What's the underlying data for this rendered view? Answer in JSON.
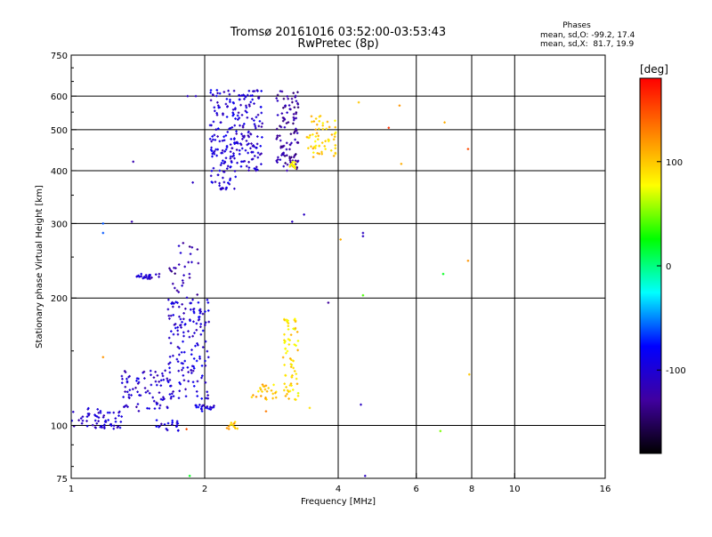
{
  "chart_data": {
    "type": "scatter",
    "title": "Tromsø 20161016 03:52:00-03:53:43",
    "subtitle": "RwPretec (8p)",
    "xlabel": "Frequency [MHz]",
    "ylabel": "Stationary phase Virtual Height [km]",
    "x_scale": "log2",
    "y_scale": "log",
    "xlim": [
      1,
      16
    ],
    "ylim": [
      75,
      750
    ],
    "x_ticks": [
      1,
      2,
      4,
      6,
      8,
      10,
      16
    ],
    "x_tick_labels": [
      "1",
      "2",
      "4",
      "6",
      "8",
      "10",
      "16"
    ],
    "y_ticks": [
      75,
      100,
      200,
      300,
      400,
      500,
      600,
      750
    ],
    "y_tick_labels": [
      "75",
      "100",
      "200",
      "300",
      "400",
      "500",
      "600",
      "750"
    ],
    "x_gridlines": [
      2,
      4,
      6,
      8,
      10
    ],
    "y_gridlines": [
      100,
      200,
      300,
      400,
      500,
      600
    ],
    "grid": true,
    "phase_info": {
      "heading": "Phases",
      "line1": "mean, sd,O: -99.2, 17.4",
      "line2": "mean, sd,X:  81.7, 19.9"
    },
    "colorbar": {
      "label": "[deg]",
      "range": [
        -180,
        180
      ],
      "ticks": [
        100,
        0,
        -100
      ],
      "tick_labels": [
        "100",
        "0",
        "-100"
      ],
      "colors": [
        "#ff0000",
        "#ff8000",
        "#ffff00",
        "#00ff00",
        "#00ffff",
        "#0000ff",
        "#4000a0",
        "#000000"
      ]
    },
    "clusters": [
      {
        "fmin": 1.0,
        "fmax": 1.3,
        "hmin": 98,
        "hmax": 110,
        "phase_mean": -105,
        "n": 60
      },
      {
        "fmin": 1.3,
        "fmax": 1.7,
        "hmin": 108,
        "hmax": 135,
        "phase_mean": -105,
        "n": 80
      },
      {
        "fmin": 1.55,
        "fmax": 1.75,
        "hmin": 97,
        "hmax": 103,
        "phase_mean": -100,
        "n": 20
      },
      {
        "fmin": 1.65,
        "fmax": 2.05,
        "hmin": 115,
        "hmax": 200,
        "phase_mean": -100,
        "n": 150
      },
      {
        "fmin": 1.9,
        "fmax": 2.1,
        "hmin": 108,
        "hmax": 112,
        "phase_mean": -100,
        "n": 20
      },
      {
        "fmin": 1.4,
        "fmax": 1.6,
        "hmin": 222,
        "hmax": 228,
        "phase_mean": -105,
        "n": 25
      },
      {
        "fmin": 1.65,
        "fmax": 1.95,
        "hmin": 200,
        "hmax": 270,
        "phase_mean": -120,
        "n": 30
      },
      {
        "fmin": 2.05,
        "fmax": 2.35,
        "hmin": 360,
        "hmax": 620,
        "phase_mean": -100,
        "n": 140
      },
      {
        "fmin": 2.35,
        "fmax": 2.7,
        "hmin": 400,
        "hmax": 620,
        "phase_mean": -105,
        "n": 120
      },
      {
        "fmin": 2.9,
        "fmax": 3.25,
        "hmin": 400,
        "hmax": 620,
        "phase_mean": -125,
        "n": 110
      },
      {
        "fmin": 3.4,
        "fmax": 3.95,
        "hmin": 430,
        "hmax": 540,
        "phase_mean": 95,
        "n": 60
      },
      {
        "fmin": 3.0,
        "fmax": 3.25,
        "hmin": 115,
        "hmax": 180,
        "phase_mean": 90,
        "n": 70
      },
      {
        "fmin": 2.55,
        "fmax": 2.95,
        "hmin": 115,
        "hmax": 125,
        "phase_mean": 100,
        "n": 25
      },
      {
        "fmin": 2.2,
        "fmax": 2.4,
        "hmin": 98,
        "hmax": 102,
        "phase_mean": 105,
        "n": 12
      },
      {
        "fmin": 3.1,
        "fmax": 3.2,
        "hmin": 404,
        "hmax": 420,
        "phase_mean": 80,
        "n": 15
      }
    ],
    "points": [
      {
        "f": 1.38,
        "h": 420,
        "phase": -120
      },
      {
        "f": 1.37,
        "h": 303,
        "phase": -120
      },
      {
        "f": 1.18,
        "h": 300,
        "phase": -60
      },
      {
        "f": 1.18,
        "h": 285,
        "phase": -60
      },
      {
        "f": 1.88,
        "h": 375,
        "phase": -110
      },
      {
        "f": 1.83,
        "h": 600,
        "phase": -110
      },
      {
        "f": 1.91,
        "h": 600,
        "phase": -110
      },
      {
        "f": 3.15,
        "h": 303,
        "phase": -110
      },
      {
        "f": 3.35,
        "h": 315,
        "phase": -110
      },
      {
        "f": 4.55,
        "h": 285,
        "phase": -110
      },
      {
        "f": 4.55,
        "h": 280,
        "phase": -110
      },
      {
        "f": 4.05,
        "h": 275,
        "phase": 110
      },
      {
        "f": 3.8,
        "h": 195,
        "phase": -130
      },
      {
        "f": 4.55,
        "h": 203,
        "phase": 40
      },
      {
        "f": 4.5,
        "h": 112,
        "phase": -110
      },
      {
        "f": 4.6,
        "h": 76,
        "phase": -110
      },
      {
        "f": 5.5,
        "h": 570,
        "phase": 120
      },
      {
        "f": 5.2,
        "h": 505,
        "phase": 160
      },
      {
        "f": 5.55,
        "h": 415,
        "phase": 110
      },
      {
        "f": 6.95,
        "h": 520,
        "phase": 110
      },
      {
        "f": 7.85,
        "h": 450,
        "phase": 150
      },
      {
        "f": 7.85,
        "h": 245,
        "phase": 120
      },
      {
        "f": 6.9,
        "h": 228,
        "phase": 20
      },
      {
        "f": 6.8,
        "h": 97,
        "phase": 50
      },
      {
        "f": 7.9,
        "h": 132,
        "phase": 100
      },
      {
        "f": 4.45,
        "h": 580,
        "phase": 100
      },
      {
        "f": 1.18,
        "h": 145,
        "phase": 120
      },
      {
        "f": 1.82,
        "h": 98,
        "phase": 150
      },
      {
        "f": 2.75,
        "h": 108,
        "phase": 130
      },
      {
        "f": 3.45,
        "h": 110,
        "phase": 90
      },
      {
        "f": 1.85,
        "h": 76,
        "phase": 20
      }
    ]
  }
}
